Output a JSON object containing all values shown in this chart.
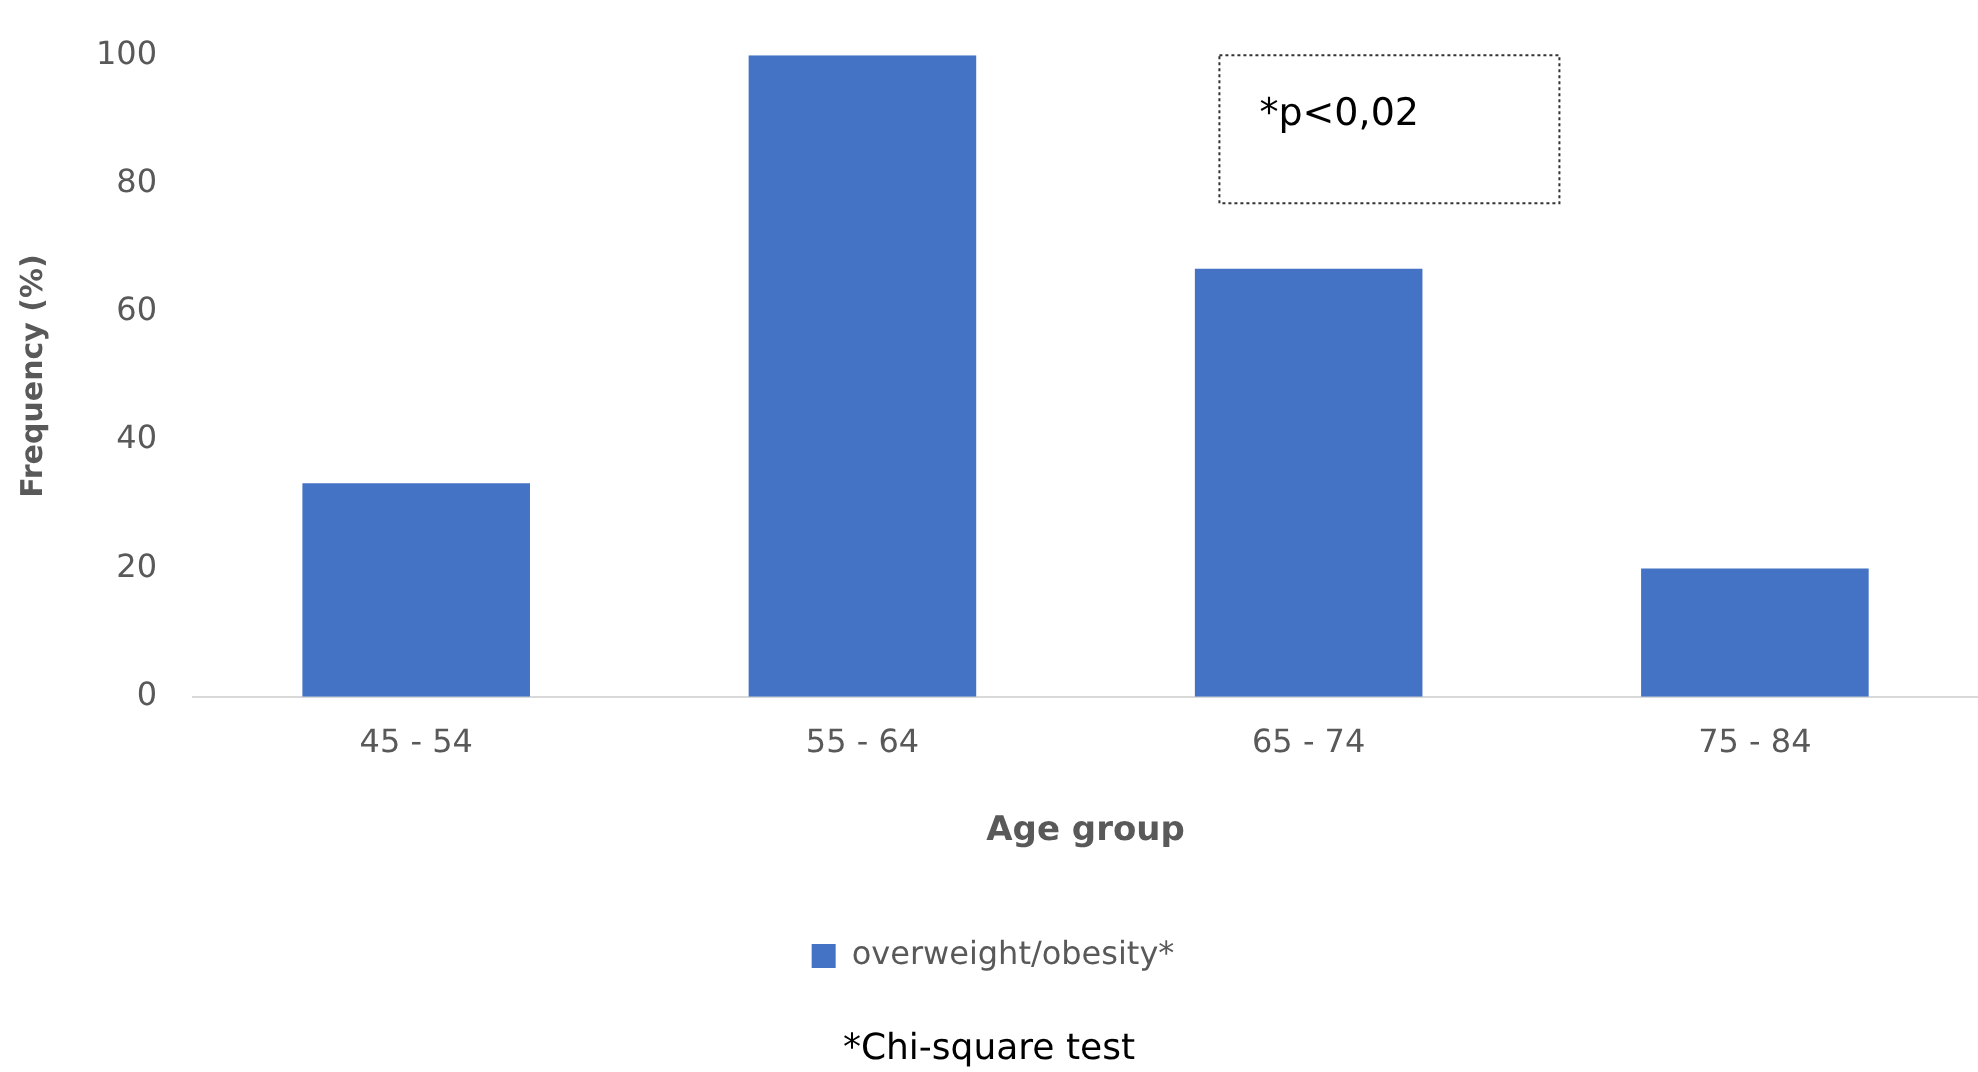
{
  "chart_data": {
    "type": "bar",
    "categories": [
      "45 - 54",
      "55 - 64",
      "65 - 74",
      "75 - 84"
    ],
    "series": [
      {
        "name": "overweight/obesity*",
        "color": "#4472c4",
        "values": [
          33.3,
          100,
          66.7,
          20
        ]
      }
    ],
    "ylabel": "Frequency (%)",
    "xlabel": "Age group",
    "ylim": [
      0,
      100
    ],
    "yticks": [
      0,
      20,
      40,
      60,
      80,
      100
    ],
    "grid": false,
    "legend": "bottom",
    "annotations": [
      "*p<0,02",
      "*Chi-square test"
    ]
  }
}
